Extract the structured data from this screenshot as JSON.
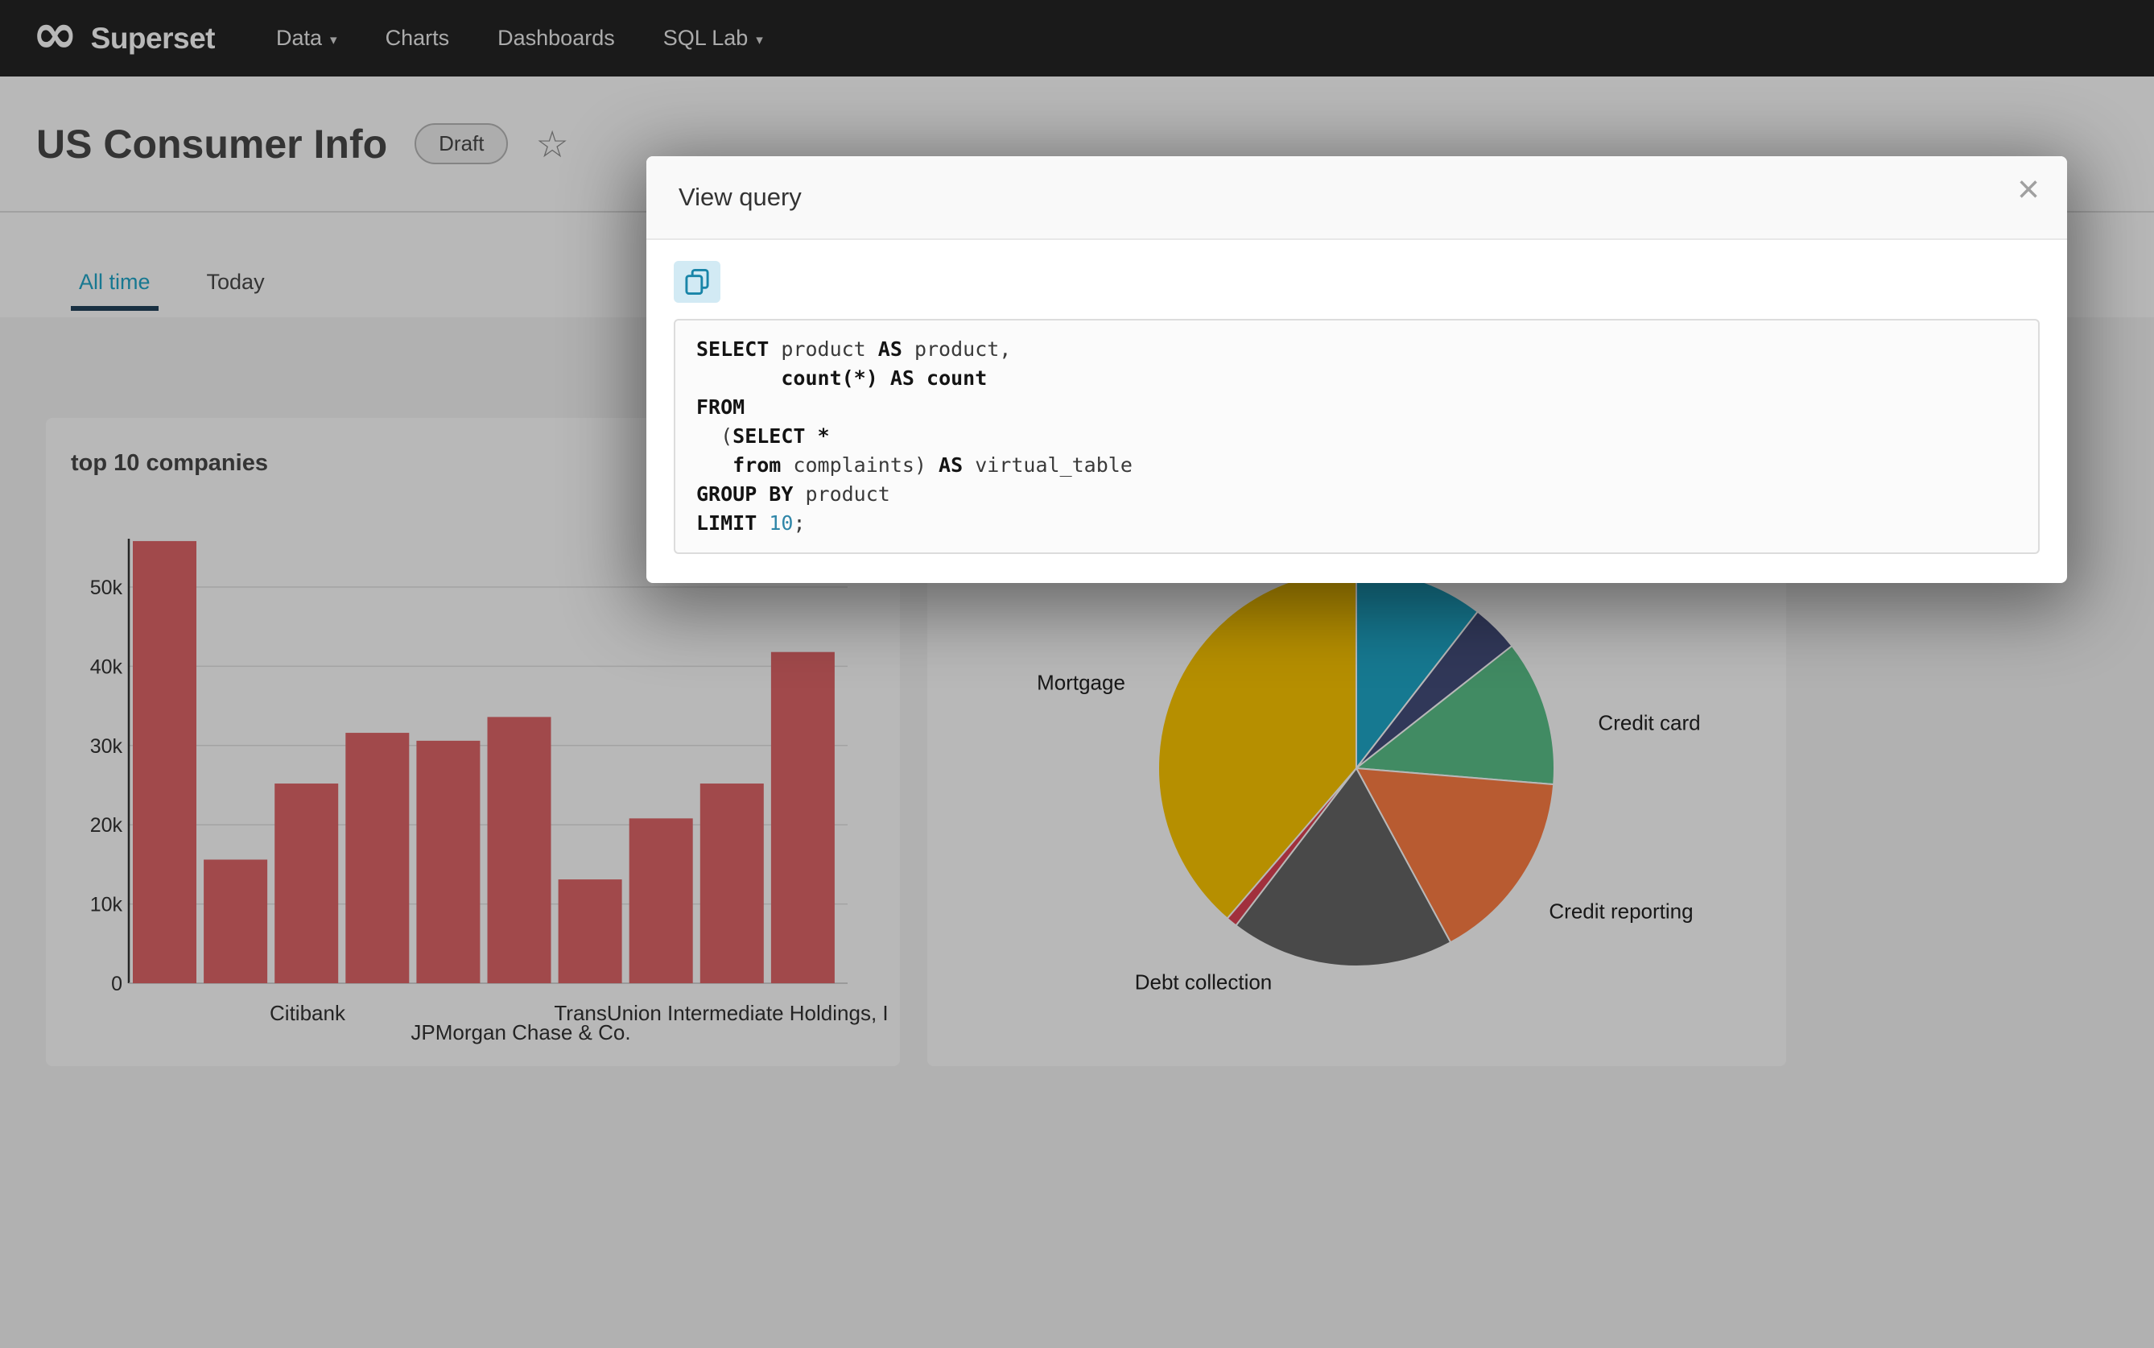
{
  "icons": {
    "logo_infinity": "∞",
    "caret": "▾",
    "star": "☆",
    "close": "×",
    "copy": "copy-to-clipboard-icon"
  },
  "colors": {
    "accent_teal": "#20a7c9",
    "navbar_bg": "#252525",
    "tab_underline": "#23435c"
  },
  "navbar": {
    "brand": "Superset",
    "items": [
      {
        "label": "Data",
        "has_caret": true
      },
      {
        "label": "Charts",
        "has_caret": false
      },
      {
        "label": "Dashboards",
        "has_caret": false
      },
      {
        "label": "SQL Lab",
        "has_caret": true
      }
    ]
  },
  "header": {
    "title": "US Consumer Info",
    "status_badge": "Draft"
  },
  "tabs": [
    {
      "label": "All time",
      "active": true
    },
    {
      "label": "Today",
      "active": false
    }
  ],
  "modal": {
    "title": "View query",
    "sql_lines": [
      [
        {
          "t": "SELECT",
          "c": "kw"
        },
        {
          "t": " product ",
          "c": "id"
        },
        {
          "t": "AS",
          "c": "kw"
        },
        {
          "t": " product,",
          "c": "id"
        }
      ],
      [
        {
          "t": "       ",
          "c": "id"
        },
        {
          "t": "count(*)",
          "c": "kw"
        },
        {
          "t": " ",
          "c": "id"
        },
        {
          "t": "AS",
          "c": "kw"
        },
        {
          "t": " ",
          "c": "id"
        },
        {
          "t": "count",
          "c": "kw"
        }
      ],
      [
        {
          "t": "FROM",
          "c": "kw"
        }
      ],
      [
        {
          "t": "  (",
          "c": "id"
        },
        {
          "t": "SELECT *",
          "c": "kw"
        }
      ],
      [
        {
          "t": "   ",
          "c": "id"
        },
        {
          "t": "from",
          "c": "kw"
        },
        {
          "t": " complaints) ",
          "c": "id"
        },
        {
          "t": "AS",
          "c": "kw"
        },
        {
          "t": " virtual_table",
          "c": "id"
        }
      ],
      [
        {
          "t": "GROUP BY",
          "c": "kw"
        },
        {
          "t": " product",
          "c": "id"
        }
      ],
      [
        {
          "t": "LIMIT",
          "c": "kw"
        },
        {
          "t": " ",
          "c": "id"
        },
        {
          "t": "10",
          "c": "num"
        },
        {
          "t": ";",
          "c": "id"
        }
      ]
    ]
  },
  "chart_data": [
    {
      "type": "bar",
      "title": "top 10 companies",
      "x_tick_labels": [
        "Citibank",
        "JPMorgan Chase & Co.",
        "TransUnion Intermediate Holdings, I"
      ],
      "values": [
        55800,
        15600,
        25200,
        31600,
        30600,
        33600,
        13100,
        20800,
        25200,
        41800
      ],
      "y_tick_labels": [
        "0",
        "10k",
        "20k",
        "30k",
        "40k",
        "50k"
      ],
      "ylim": [
        0,
        57000
      ],
      "bar_color": "#e06668",
      "grid": true,
      "legend": "none"
    },
    {
      "type": "pie",
      "title": "",
      "slices": [
        {
          "label": "",
          "value_pct": 10.5,
          "color": "#1FA8C9"
        },
        {
          "label": "",
          "value_pct": 3.9,
          "color": "#454E7C"
        },
        {
          "label": "Credit card",
          "value_pct": 11.9,
          "color": "#5AC189"
        },
        {
          "label": "Credit reporting",
          "value_pct": 15.8,
          "color": "#FF7F44"
        },
        {
          "label": "Debt collection",
          "value_pct": 18.3,
          "color": "#666666"
        },
        {
          "label": "",
          "value_pct": 0.9,
          "color": "#E04355"
        },
        {
          "label": "Mortgage",
          "value_pct": 38.7,
          "color": "#FCC700"
        }
      ],
      "legend": "none"
    }
  ]
}
